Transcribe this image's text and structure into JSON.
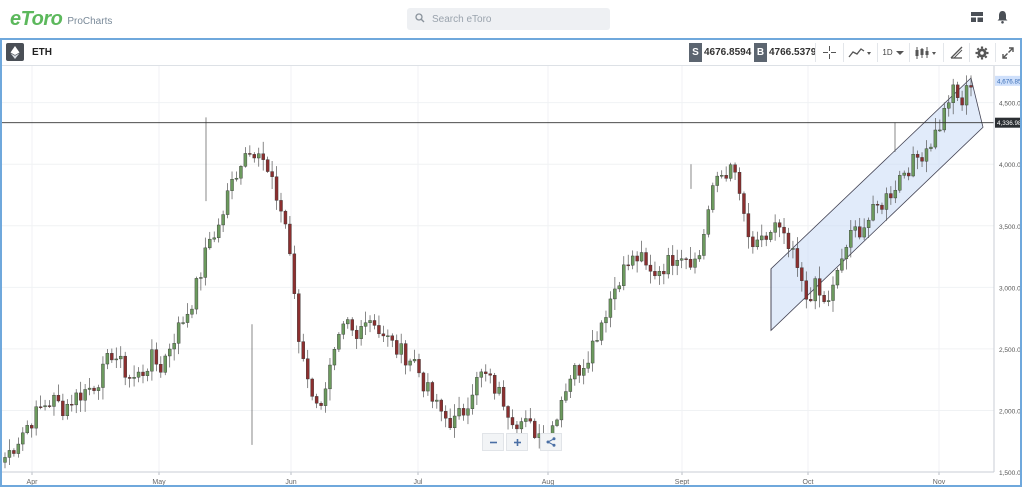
{
  "header": {
    "logo": "eToro",
    "logo_sub": "ProCharts",
    "search_placeholder": "Search eToro",
    "icons": [
      "layout-icon",
      "bell-icon"
    ]
  },
  "toolbar": {
    "instrument": "ETH",
    "sell_tag": "S",
    "sell_price": "4676.8594",
    "buy_tag": "B",
    "buy_price": "4766.5379",
    "timeframe": "1D",
    "icons": [
      "crosshair-icon",
      "chart-type-icon",
      "candles-icon",
      "draw-icon",
      "settings-icon",
      "fullscreen-icon"
    ]
  },
  "axis": {
    "x_labels": [
      "Apr",
      "May",
      "Jun",
      "Jul",
      "Aug",
      "Sept",
      "Oct",
      "Nov"
    ],
    "y_labels": [
      "4,500.000",
      "4,000.000",
      "3,500.000",
      "3,000.000",
      "2,500.000",
      "2,000.000",
      "1,500.000"
    ],
    "current_price_label": "4,676.859",
    "hline_label": "4,336.987"
  },
  "colors": {
    "up": "#6c9a5e",
    "down": "#8b2f2f",
    "channel": "#c9dbf5",
    "current": "#cfe0fb",
    "accent": "#5cb85c"
  },
  "chart_data": {
    "type": "candlestick",
    "instrument": "ETH",
    "timeframe": "1D",
    "ylim": [
      1500,
      4700
    ],
    "y_ticks": [
      1500,
      2000,
      2500,
      3000,
      3500,
      4000,
      4500
    ],
    "x_ticks": [
      "Apr",
      "May",
      "Jun",
      "Jul",
      "Aug",
      "Sept",
      "Oct",
      "Nov"
    ],
    "horizontal_line": 4336.987,
    "current_price": 4676.859,
    "close_path": [
      1620,
      1720,
      1850,
      1950,
      2050,
      2080,
      2020,
      2100,
      2150,
      2200,
      2300,
      2480,
      2350,
      2250,
      2300,
      2420,
      2350,
      2550,
      2700,
      2850,
      3100,
      3400,
      3500,
      3800,
      4000,
      4150,
      4100,
      3900,
      3700,
      3450,
      2600,
      2300,
      2000,
      2250,
      2500,
      2700,
      2550,
      2800,
      2700,
      2600,
      2500,
      2450,
      2400,
      2200,
      2050,
      1950,
      1900,
      2000,
      2200,
      2300,
      2200,
      2100,
      1950,
      1900,
      1850,
      1800,
      1850,
      2100,
      2300,
      2350,
      2500,
      2700,
      2900,
      3100,
      3200,
      3250,
      3100,
      3150,
      3200,
      3300,
      3250,
      3200,
      3600,
      3900,
      3950,
      3900,
      3400,
      3300,
      3400,
      3500,
      3350,
      3200,
      2900,
      3000,
      2850,
      3000,
      3300,
      3450,
      3500,
      3600,
      3700,
      3800,
      3950,
      4000,
      4100,
      4200,
      4350,
      4600,
      4480,
      4676
    ],
    "channel": {
      "start": [
        "Sep 23",
        2850,
        3150
      ],
      "end": [
        "Nov 8",
        4300,
        4700
      ]
    }
  }
}
